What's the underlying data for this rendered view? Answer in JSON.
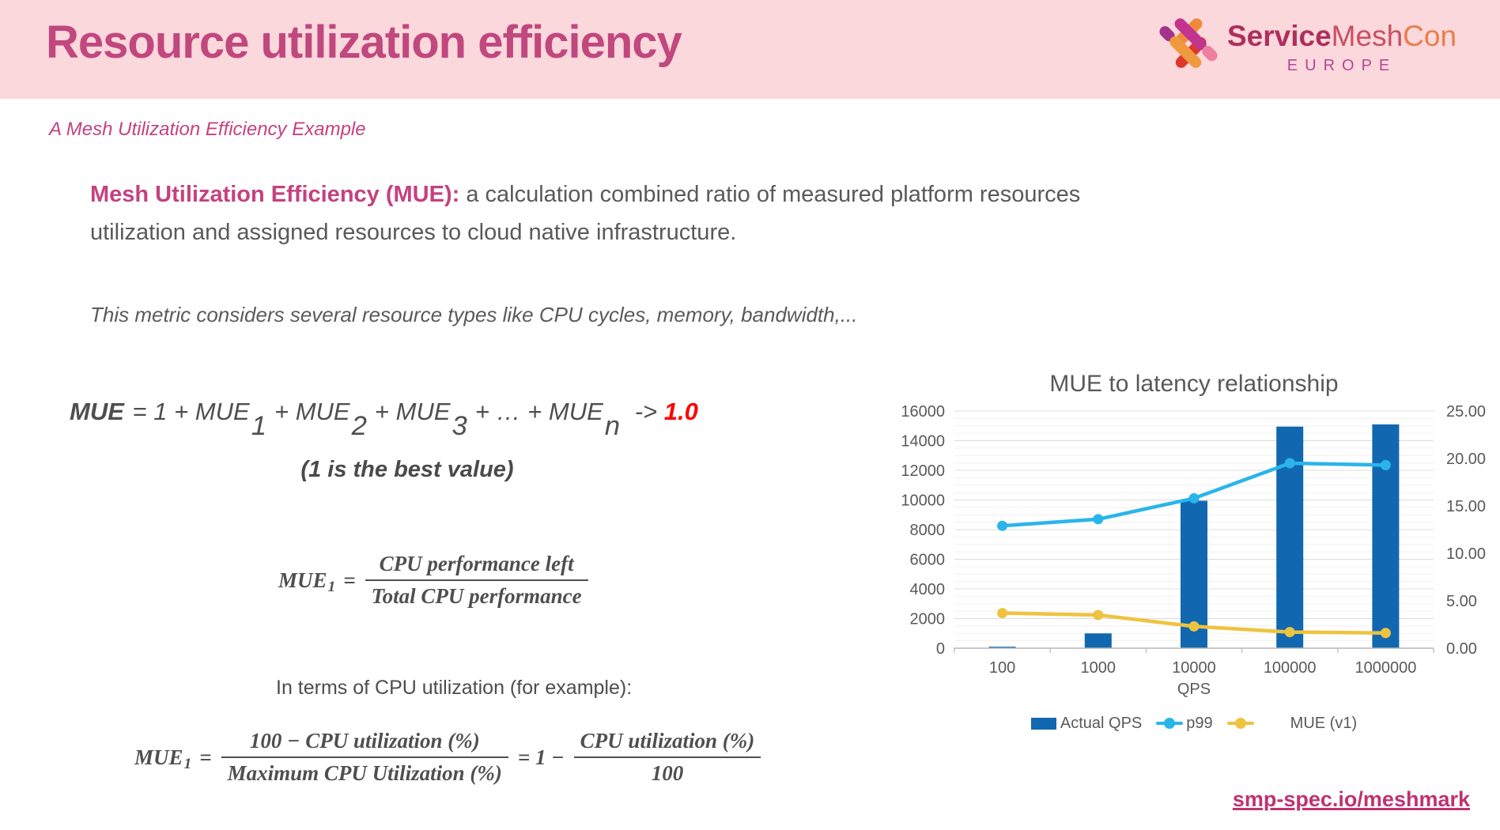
{
  "slide": {
    "header": {
      "title": "Resource utilization efficiency",
      "logo": {
        "word_service": "Service",
        "word_mesh": "Mesh",
        "word_con": "Con",
        "region": "EUROPE"
      }
    },
    "subtitle": "A Mesh Utilization Efficiency Example",
    "intro": {
      "lead": "Mesh Utilization Efficiency (MUE):",
      "line1_rest": " a calculation combined ratio of measured platform resources",
      "line2": "utilization and assigned resources to cloud native infrastructure."
    },
    "note": "This metric considers several resource types like CPU cycles, memory, bandwidth,...",
    "formula_sum": {
      "parts": [
        {
          "style": "bold",
          "text": "MUE"
        },
        {
          "style": "plain",
          "text": " = 1 + MUE"
        },
        {
          "style": "sub",
          "text": "1"
        },
        {
          "style": "plain",
          "text": "+ MUE"
        },
        {
          "style": "sub",
          "text": "2"
        },
        {
          "style": "plain",
          "text": "+ MUE"
        },
        {
          "style": "sub",
          "text": "3"
        },
        {
          "style": "plain",
          "text": "+ … + MUE"
        },
        {
          "style": "sub",
          "text": "n"
        },
        {
          "style": "plain",
          "text": " -> "
        },
        {
          "style": "red",
          "text": "1.0"
        }
      ],
      "caption": "(1 is the best value)"
    },
    "formula_mue1": {
      "parts": [
        {
          "style": "mvar",
          "text": "MUE"
        },
        {
          "style": "msub",
          "text": "1"
        },
        {
          "style": "mplain",
          "text": "="
        },
        {
          "style": "frac",
          "num": "CPU performance left",
          "den": "Total CPU performance"
        }
      ]
    },
    "cpu_intro": "In terms of CPU utilization (for example):",
    "formula_cpu": {
      "parts": [
        {
          "style": "mvar",
          "text": "MUE"
        },
        {
          "style": "msub",
          "text": "1"
        },
        {
          "style": "mplain",
          "text": "="
        },
        {
          "style": "frac",
          "num": "100 − CPU utilization (%)",
          "den": "Maximum CPU Utilization (%)"
        },
        {
          "style": "mplain",
          "text": "= 1 −"
        },
        {
          "style": "frac",
          "num": "CPU utilization (%)",
          "den": "100"
        }
      ]
    },
    "footer_link": "smp-spec.io/meshmark",
    "colors": {
      "band_pink": "#fbd8db",
      "title_pink": "#c1477f",
      "accent_pink": "#c5417f",
      "text_gray": "#595959",
      "formula_red": "#fe0000",
      "link_pink": "#bf3272",
      "bar_blue": "#1168b1",
      "line_cyan": "#29b5ea",
      "line_yellow": "#eec33f"
    }
  },
  "chart_data": {
    "type": "combo",
    "title": "MUE to latency relationship",
    "xlabel": "QPS",
    "categories": [
      "100",
      "1000",
      "10000",
      "100000",
      "1000000"
    ],
    "left_axis": {
      "min": 0,
      "max": 16000,
      "step": 2000,
      "minor_step": 500
    },
    "right_axis": {
      "min": 0,
      "max": 25,
      "step": 5
    },
    "grid": true,
    "legend_position": "bottom",
    "series": [
      {
        "name": "Actual QPS",
        "type": "bar",
        "axis": "left",
        "color": "#1168b1",
        "values": [
          100,
          1000,
          9950,
          14950,
          15100
        ]
      },
      {
        "name": "p99",
        "type": "line",
        "axis": "right",
        "color": "#29b5ea",
        "values": [
          12.9,
          13.6,
          15.8,
          19.5,
          19.3
        ]
      },
      {
        "name": "MUE (v1)",
        "type": "line",
        "axis": "right",
        "color": "#eec33f",
        "values": [
          3.7,
          3.5,
          2.3,
          1.7,
          1.6
        ]
      }
    ]
  }
}
